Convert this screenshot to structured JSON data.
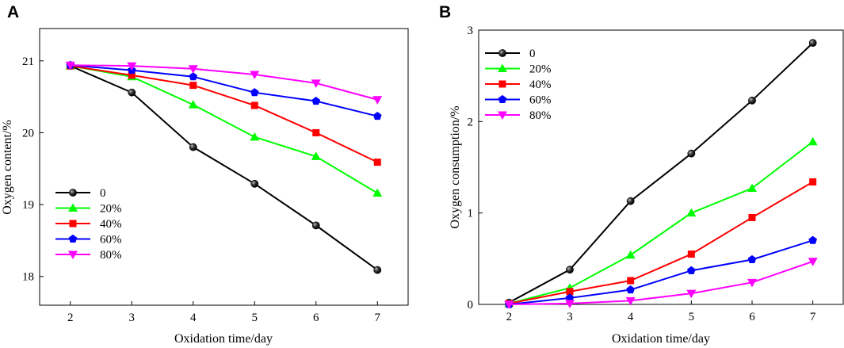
{
  "chart_data": [
    {
      "type": "line",
      "panel_label": "A",
      "x": [
        2,
        3,
        4,
        5,
        6,
        7
      ],
      "xlabel": "Oxidation time/day",
      "ylabel": "Oxygen content/%",
      "xlim": [
        1.5,
        7.5
      ],
      "ylim": [
        17.6,
        21.45
      ],
      "xticks": [
        "2",
        "3",
        "4",
        "5",
        "6",
        "7"
      ],
      "yticks": [
        "18",
        "19",
        "20",
        "21"
      ],
      "ytick_values": [
        18,
        19,
        20,
        21
      ],
      "legend_position": "lower-left",
      "series": [
        {
          "name": "0",
          "color": "#000000",
          "marker": "sphere",
          "values": [
            20.93,
            20.56,
            19.8,
            19.29,
            18.71,
            18.09
          ]
        },
        {
          "name": "20%",
          "color": "#00ff00",
          "marker": "triangle-up",
          "values": [
            20.93,
            20.78,
            20.39,
            19.94,
            19.67,
            19.16
          ]
        },
        {
          "name": "40%",
          "color": "#ff0000",
          "marker": "square",
          "values": [
            20.93,
            20.8,
            20.66,
            20.38,
            20.0,
            19.59
          ]
        },
        {
          "name": "60%",
          "color": "#0000ff",
          "marker": "pentagon",
          "values": [
            20.94,
            20.87,
            20.78,
            20.56,
            20.44,
            20.23
          ]
        },
        {
          "name": "80%",
          "color": "#ff00ff",
          "marker": "triangle-down",
          "values": [
            20.94,
            20.93,
            20.89,
            20.81,
            20.69,
            20.46
          ]
        }
      ]
    },
    {
      "type": "line",
      "panel_label": "B",
      "x": [
        2,
        3,
        4,
        5,
        6,
        7
      ],
      "xlabel": "Oxidation time/day",
      "ylabel": "Oxygen consumption/%",
      "xlim": [
        1.5,
        7.5
      ],
      "ylim": [
        0,
        3
      ],
      "xticks": [
        "2",
        "3",
        "4",
        "5",
        "6",
        "7"
      ],
      "yticks": [
        "0",
        "1",
        "2",
        "3"
      ],
      "ytick_values": [
        0,
        1,
        2,
        3
      ],
      "legend_position": "top-left",
      "series": [
        {
          "name": "0",
          "color": "#000000",
          "marker": "sphere",
          "values": [
            0.02,
            0.38,
            1.13,
            1.65,
            2.23,
            2.86
          ]
        },
        {
          "name": "20%",
          "color": "#00ff00",
          "marker": "triangle-up",
          "values": [
            0.01,
            0.18,
            0.54,
            1.0,
            1.27,
            1.78
          ]
        },
        {
          "name": "40%",
          "color": "#ff0000",
          "marker": "square",
          "values": [
            0.01,
            0.14,
            0.26,
            0.55,
            0.95,
            1.34
          ]
        },
        {
          "name": "60%",
          "color": "#0000ff",
          "marker": "pentagon",
          "values": [
            0.0,
            0.07,
            0.16,
            0.37,
            0.49,
            0.7
          ]
        },
        {
          "name": "80%",
          "color": "#ff00ff",
          "marker": "triangle-down",
          "values": [
            0.0,
            0.01,
            0.04,
            0.12,
            0.24,
            0.47
          ]
        }
      ]
    }
  ]
}
